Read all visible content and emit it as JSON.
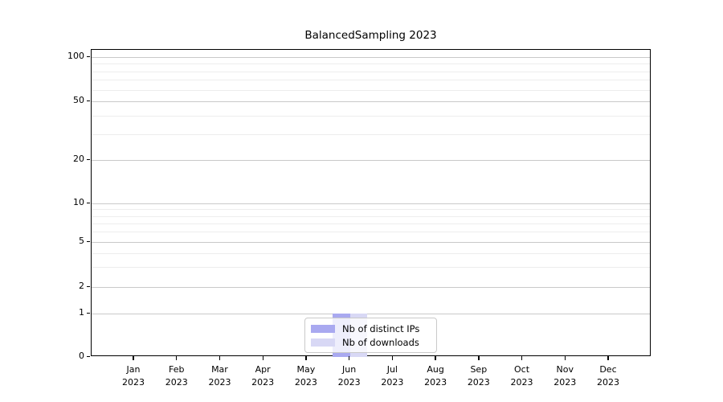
{
  "title": "BalancedSampling 2023",
  "chart_data": {
    "type": "bar",
    "title": "BalancedSampling 2023",
    "categories": [
      "Jan 2023",
      "Feb 2023",
      "Mar 2023",
      "Apr 2023",
      "May 2023",
      "Jun 2023",
      "Jul 2023",
      "Aug 2023",
      "Sep 2023",
      "Oct 2023",
      "Nov 2023",
      "Dec 2023"
    ],
    "series": [
      {
        "name": "Nb of distinct IPs",
        "color": "#a9a9f0",
        "values": [
          0,
          0,
          0,
          0,
          0,
          1,
          0,
          0,
          0,
          0,
          0,
          0
        ]
      },
      {
        "name": "Nb of downloads",
        "color": "#d8d8f5",
        "values": [
          0,
          0,
          0,
          0,
          0,
          1,
          0,
          0,
          0,
          0,
          0,
          0
        ]
      }
    ],
    "y_axis": {
      "scale": "symlog",
      "ticks": [
        0,
        1,
        2,
        5,
        10,
        20,
        50,
        100
      ],
      "range": [
        0,
        110
      ]
    },
    "x_axis": {
      "year_line": "2023"
    },
    "legend": {
      "position": "lower center",
      "entries": [
        "Nb of distinct IPs",
        "Nb of downloads"
      ]
    },
    "grid": true,
    "background": "#ffffff"
  }
}
